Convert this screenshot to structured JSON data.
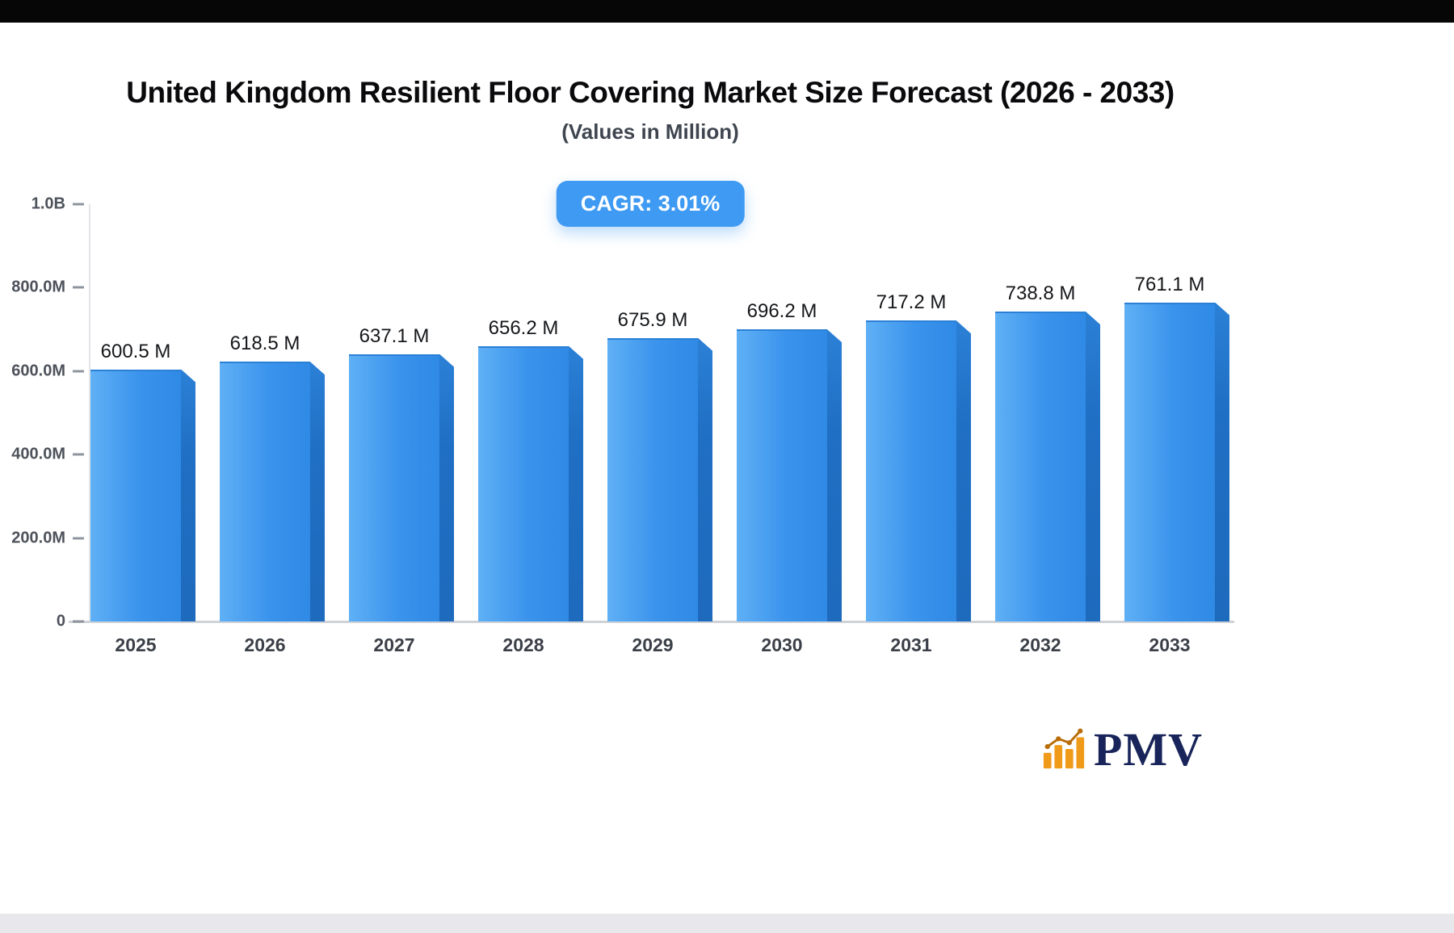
{
  "page": {
    "title": "United Kingdom Resilient Floor Covering Market Size Forecast (2026 - 2033)",
    "subtitle": "(Values in Million)",
    "cagr_badge": "CAGR: 3.01%"
  },
  "chart_data": {
    "type": "bar",
    "title": "United Kingdom Resilient Floor Covering Market Size Forecast (2026 - 2033)",
    "subtitle": "(Values in Million)",
    "unit": "Million",
    "cagr": "3.01%",
    "categories": [
      "2025",
      "2026",
      "2027",
      "2028",
      "2029",
      "2030",
      "2031",
      "2032",
      "2033"
    ],
    "values": [
      600.5,
      618.5,
      637.1,
      656.2,
      675.9,
      696.2,
      717.2,
      738.8,
      761.1
    ],
    "value_labels": [
      "600.5 M",
      "618.5 M",
      "637.1 M",
      "656.2 M",
      "675.9 M",
      "696.2 M",
      "717.2 M",
      "738.8 M",
      "761.1 M"
    ],
    "ylim": [
      0,
      1000
    ],
    "yticks": [
      {
        "label": "1.0B",
        "value": 1000
      },
      {
        "label": "800.0M",
        "value": 800
      },
      {
        "label": "600.0M",
        "value": 600
      },
      {
        "label": "400.0M",
        "value": 400
      },
      {
        "label": "200.0M",
        "value": 200
      },
      {
        "label": "0",
        "value": 0
      }
    ],
    "grid": false,
    "legend": false,
    "colors": {
      "bar_front_light": "#5fb0f5",
      "bar_front": "#2f8ae6",
      "bar_side": "#1f6fc4",
      "badge": "#3e9af2",
      "axis": "#cfd2d6"
    }
  },
  "branding": {
    "logo_text": "PMV",
    "logo_text_color": "#19255a",
    "logo_icon_color": "#f09a1a"
  }
}
